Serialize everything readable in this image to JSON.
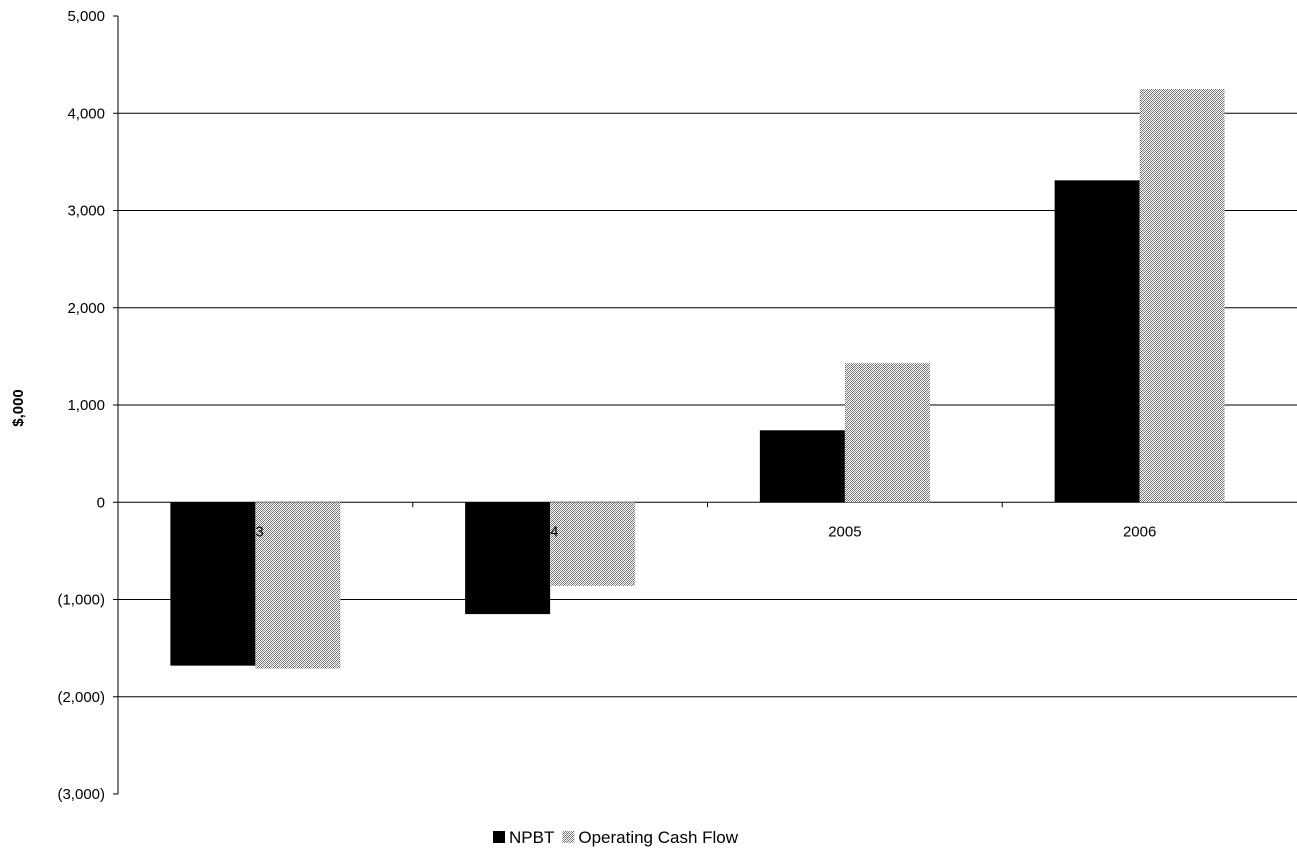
{
  "chart_data": {
    "type": "bar",
    "title": "",
    "xlabel": "",
    "ylabel": "$,000",
    "categories": [
      "2003",
      "2004",
      "2005",
      "2006"
    ],
    "category_labels_visible": [
      "03",
      "04",
      "2005",
      "2006"
    ],
    "series": [
      {
        "name": "NPBT",
        "values": [
          -1680,
          -1150,
          740,
          3310
        ],
        "color": "#000000",
        "pattern": "solid"
      },
      {
        "name": "Operating Cash Flow",
        "values": [
          -1710,
          -860,
          1430,
          4250
        ],
        "color": "#c8c8c8",
        "pattern": "stipple"
      }
    ],
    "ylim": [
      -3000,
      5000
    ],
    "y_ticks": [
      5000,
      4000,
      3000,
      2000,
      1000,
      0,
      -1000,
      -2000,
      -3000
    ],
    "y_tick_labels": [
      "5,000",
      "4,000",
      "3,000",
      "2,000",
      "1,000",
      "0",
      "(1,000)",
      "(2,000)",
      "(3,000)"
    ],
    "grid": true,
    "legend_position": "bottom-center"
  }
}
